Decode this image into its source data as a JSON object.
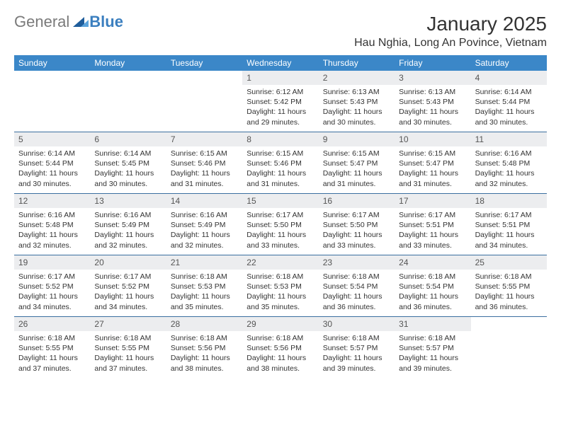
{
  "brand": {
    "general": "General",
    "blue": "Blue"
  },
  "title": "January 2025",
  "location": "Hau Nghia, Long An Povince, Vietnam",
  "colors": {
    "header_bg": "#3b87c8",
    "header_text": "#ffffff",
    "daynum_bg": "#ecedef",
    "week_border": "#3b6fa0",
    "text": "#333333",
    "logo_gray": "#7a7a7a",
    "logo_blue": "#3b7fbf"
  },
  "dayNames": [
    "Sunday",
    "Monday",
    "Tuesday",
    "Wednesday",
    "Thursday",
    "Friday",
    "Saturday"
  ],
  "weeks": [
    [
      {
        "n": "",
        "sunrise": "",
        "sunset": "",
        "daylight": ""
      },
      {
        "n": "",
        "sunrise": "",
        "sunset": "",
        "daylight": ""
      },
      {
        "n": "",
        "sunrise": "",
        "sunset": "",
        "daylight": ""
      },
      {
        "n": "1",
        "sunrise": "Sunrise: 6:12 AM",
        "sunset": "Sunset: 5:42 PM",
        "daylight": "Daylight: 11 hours and 29 minutes."
      },
      {
        "n": "2",
        "sunrise": "Sunrise: 6:13 AM",
        "sunset": "Sunset: 5:43 PM",
        "daylight": "Daylight: 11 hours and 30 minutes."
      },
      {
        "n": "3",
        "sunrise": "Sunrise: 6:13 AM",
        "sunset": "Sunset: 5:43 PM",
        "daylight": "Daylight: 11 hours and 30 minutes."
      },
      {
        "n": "4",
        "sunrise": "Sunrise: 6:14 AM",
        "sunset": "Sunset: 5:44 PM",
        "daylight": "Daylight: 11 hours and 30 minutes."
      }
    ],
    [
      {
        "n": "5",
        "sunrise": "Sunrise: 6:14 AM",
        "sunset": "Sunset: 5:44 PM",
        "daylight": "Daylight: 11 hours and 30 minutes."
      },
      {
        "n": "6",
        "sunrise": "Sunrise: 6:14 AM",
        "sunset": "Sunset: 5:45 PM",
        "daylight": "Daylight: 11 hours and 30 minutes."
      },
      {
        "n": "7",
        "sunrise": "Sunrise: 6:15 AM",
        "sunset": "Sunset: 5:46 PM",
        "daylight": "Daylight: 11 hours and 31 minutes."
      },
      {
        "n": "8",
        "sunrise": "Sunrise: 6:15 AM",
        "sunset": "Sunset: 5:46 PM",
        "daylight": "Daylight: 11 hours and 31 minutes."
      },
      {
        "n": "9",
        "sunrise": "Sunrise: 6:15 AM",
        "sunset": "Sunset: 5:47 PM",
        "daylight": "Daylight: 11 hours and 31 minutes."
      },
      {
        "n": "10",
        "sunrise": "Sunrise: 6:15 AM",
        "sunset": "Sunset: 5:47 PM",
        "daylight": "Daylight: 11 hours and 31 minutes."
      },
      {
        "n": "11",
        "sunrise": "Sunrise: 6:16 AM",
        "sunset": "Sunset: 5:48 PM",
        "daylight": "Daylight: 11 hours and 32 minutes."
      }
    ],
    [
      {
        "n": "12",
        "sunrise": "Sunrise: 6:16 AM",
        "sunset": "Sunset: 5:48 PM",
        "daylight": "Daylight: 11 hours and 32 minutes."
      },
      {
        "n": "13",
        "sunrise": "Sunrise: 6:16 AM",
        "sunset": "Sunset: 5:49 PM",
        "daylight": "Daylight: 11 hours and 32 minutes."
      },
      {
        "n": "14",
        "sunrise": "Sunrise: 6:16 AM",
        "sunset": "Sunset: 5:49 PM",
        "daylight": "Daylight: 11 hours and 32 minutes."
      },
      {
        "n": "15",
        "sunrise": "Sunrise: 6:17 AM",
        "sunset": "Sunset: 5:50 PM",
        "daylight": "Daylight: 11 hours and 33 minutes."
      },
      {
        "n": "16",
        "sunrise": "Sunrise: 6:17 AM",
        "sunset": "Sunset: 5:50 PM",
        "daylight": "Daylight: 11 hours and 33 minutes."
      },
      {
        "n": "17",
        "sunrise": "Sunrise: 6:17 AM",
        "sunset": "Sunset: 5:51 PM",
        "daylight": "Daylight: 11 hours and 33 minutes."
      },
      {
        "n": "18",
        "sunrise": "Sunrise: 6:17 AM",
        "sunset": "Sunset: 5:51 PM",
        "daylight": "Daylight: 11 hours and 34 minutes."
      }
    ],
    [
      {
        "n": "19",
        "sunrise": "Sunrise: 6:17 AM",
        "sunset": "Sunset: 5:52 PM",
        "daylight": "Daylight: 11 hours and 34 minutes."
      },
      {
        "n": "20",
        "sunrise": "Sunrise: 6:17 AM",
        "sunset": "Sunset: 5:52 PM",
        "daylight": "Daylight: 11 hours and 34 minutes."
      },
      {
        "n": "21",
        "sunrise": "Sunrise: 6:18 AM",
        "sunset": "Sunset: 5:53 PM",
        "daylight": "Daylight: 11 hours and 35 minutes."
      },
      {
        "n": "22",
        "sunrise": "Sunrise: 6:18 AM",
        "sunset": "Sunset: 5:53 PM",
        "daylight": "Daylight: 11 hours and 35 minutes."
      },
      {
        "n": "23",
        "sunrise": "Sunrise: 6:18 AM",
        "sunset": "Sunset: 5:54 PM",
        "daylight": "Daylight: 11 hours and 36 minutes."
      },
      {
        "n": "24",
        "sunrise": "Sunrise: 6:18 AM",
        "sunset": "Sunset: 5:54 PM",
        "daylight": "Daylight: 11 hours and 36 minutes."
      },
      {
        "n": "25",
        "sunrise": "Sunrise: 6:18 AM",
        "sunset": "Sunset: 5:55 PM",
        "daylight": "Daylight: 11 hours and 36 minutes."
      }
    ],
    [
      {
        "n": "26",
        "sunrise": "Sunrise: 6:18 AM",
        "sunset": "Sunset: 5:55 PM",
        "daylight": "Daylight: 11 hours and 37 minutes."
      },
      {
        "n": "27",
        "sunrise": "Sunrise: 6:18 AM",
        "sunset": "Sunset: 5:55 PM",
        "daylight": "Daylight: 11 hours and 37 minutes."
      },
      {
        "n": "28",
        "sunrise": "Sunrise: 6:18 AM",
        "sunset": "Sunset: 5:56 PM",
        "daylight": "Daylight: 11 hours and 38 minutes."
      },
      {
        "n": "29",
        "sunrise": "Sunrise: 6:18 AM",
        "sunset": "Sunset: 5:56 PM",
        "daylight": "Daylight: 11 hours and 38 minutes."
      },
      {
        "n": "30",
        "sunrise": "Sunrise: 6:18 AM",
        "sunset": "Sunset: 5:57 PM",
        "daylight": "Daylight: 11 hours and 39 minutes."
      },
      {
        "n": "31",
        "sunrise": "Sunrise: 6:18 AM",
        "sunset": "Sunset: 5:57 PM",
        "daylight": "Daylight: 11 hours and 39 minutes."
      },
      {
        "n": "",
        "sunrise": "",
        "sunset": "",
        "daylight": ""
      }
    ]
  ]
}
